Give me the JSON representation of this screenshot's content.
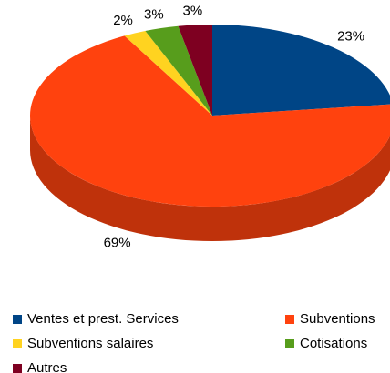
{
  "chart_data": {
    "type": "pie3d",
    "categories": [
      "Ventes et prest. Services",
      "Subventions",
      "Subventions salaires",
      "Cotisations",
      "Autres"
    ],
    "values": [
      23,
      69,
      2,
      3,
      3
    ],
    "value_labels": [
      "23%",
      "69%",
      "2%",
      "3%",
      "3%"
    ],
    "colors": [
      "#004586",
      "#ff420e",
      "#ffd320",
      "#579d1c",
      "#7e0021"
    ],
    "legend": "bottom"
  }
}
